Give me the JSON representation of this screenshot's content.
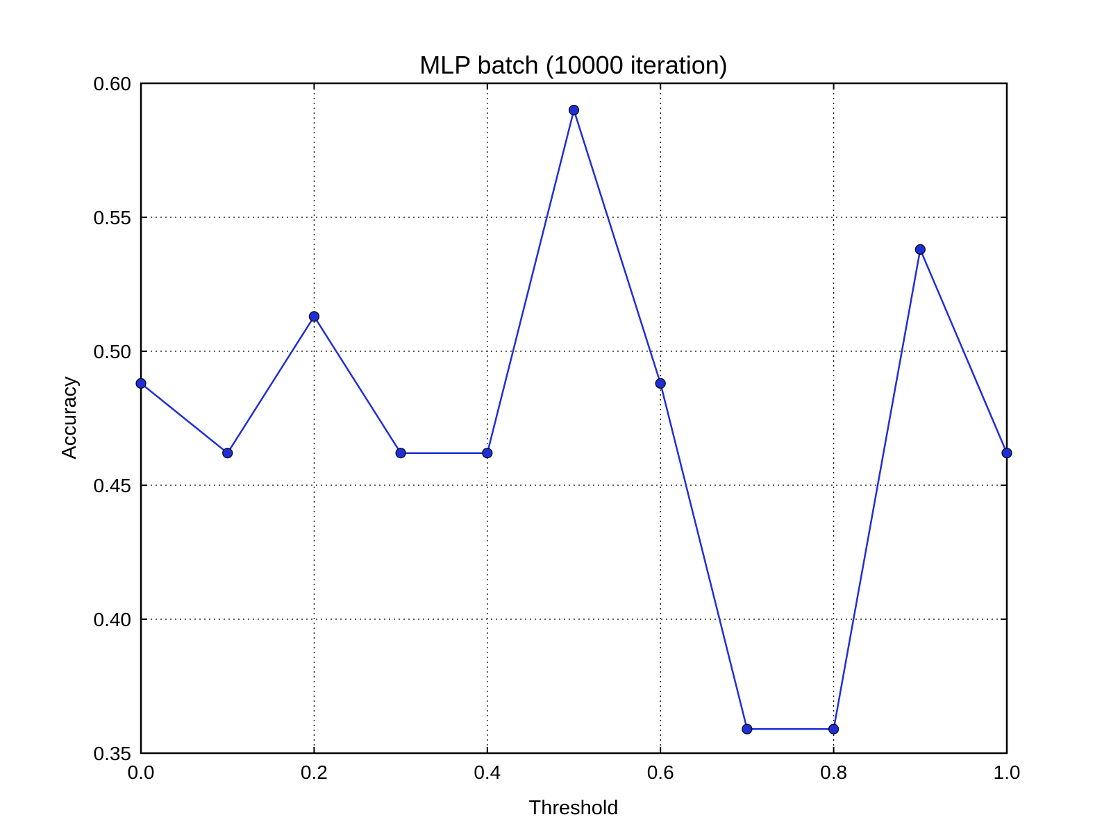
{
  "chart_data": {
    "type": "line",
    "title": "MLP batch (10000 iteration)",
    "xlabel": "Threshold",
    "ylabel": "Accuracy",
    "xlim": [
      0.0,
      1.0
    ],
    "ylim": [
      0.35,
      0.6
    ],
    "x_ticks": [
      "0.0",
      "0.2",
      "0.4",
      "0.6",
      "0.8",
      "1.0"
    ],
    "y_ticks": [
      "0.35",
      "0.40",
      "0.45",
      "0.50",
      "0.55",
      "0.60"
    ],
    "grid": true,
    "legend": "none",
    "series": [
      {
        "color": "#1f2fd6",
        "marker": "circle",
        "x": [
          0.0,
          0.1,
          0.2,
          0.3,
          0.4,
          0.5,
          0.6,
          0.7,
          0.8,
          0.9,
          1.0
        ],
        "y": [
          0.488,
          0.462,
          0.513,
          0.462,
          0.462,
          0.59,
          0.488,
          0.359,
          0.359,
          0.538,
          0.462
        ]
      }
    ]
  }
}
